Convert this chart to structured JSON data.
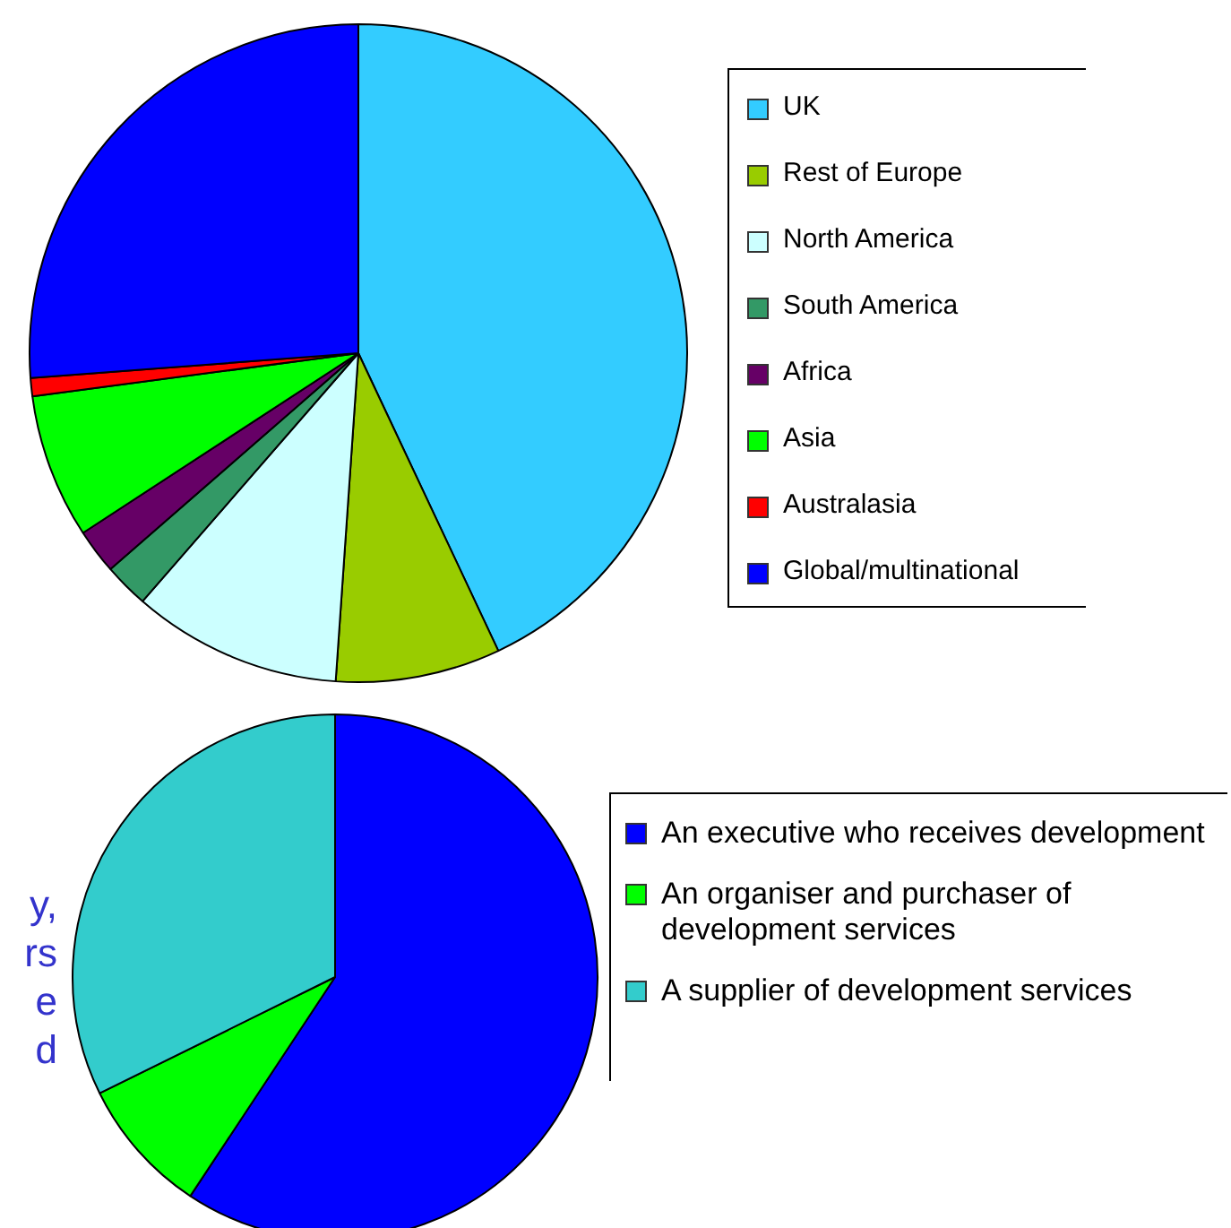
{
  "chart_data": [
    {
      "type": "pie",
      "categories": [
        "UK",
        "Rest of Europe",
        "North America",
        "South America",
        "Africa",
        "Asia",
        "Australasia",
        "Global/multinational"
      ],
      "values": [
        43,
        8.1,
        10.3,
        2.2,
        2.2,
        7.1,
        0.9,
        26.2
      ],
      "colors": [
        "#33ccff",
        "#99cc00",
        "#ccffff",
        "#339966",
        "#660066",
        "#00ff00",
        "#ff0000",
        "#0000ff"
      ],
      "legend": "right"
    },
    {
      "type": "pie",
      "categories": [
        "An executive who receives development",
        "An organiser and purchaser of development services",
        "A supplier of development services"
      ],
      "values": [
        59.3,
        8.4,
        32.3
      ],
      "colors": [
        "#0000ff",
        "#00ff00",
        "#33cccc"
      ],
      "legend": "right",
      "annotations": [
        "y,",
        "rs",
        "e",
        "d"
      ]
    }
  ]
}
